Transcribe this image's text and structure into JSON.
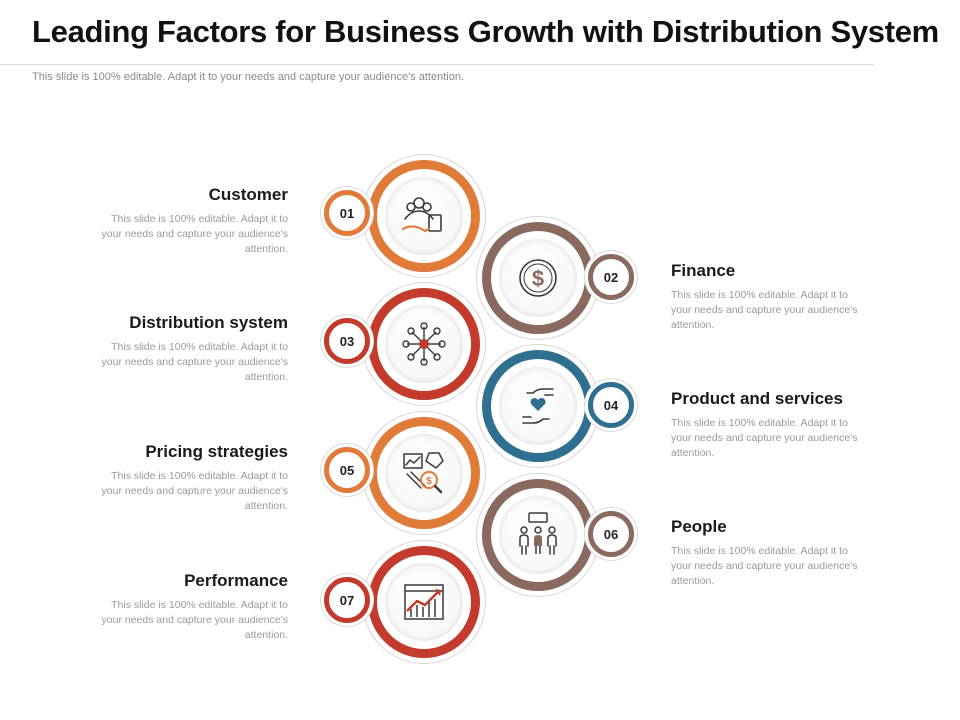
{
  "title": "Leading Factors for Business Growth with Distribution System",
  "subtitle": "This slide is 100% editable. Adapt it to your needs and capture your audience's attention.",
  "colors": {
    "orange": "#e07b39",
    "brown": "#8a6a5f",
    "red": "#c23b2c",
    "teal": "#2f6f8f",
    "dark": "#3a3a3a"
  },
  "items": [
    {
      "num": "01",
      "label": "Customer",
      "desc": "This slide is 100% editable. Adapt it to your needs and capture your audience's attention.",
      "icon": "customer-support-icon",
      "color": "orange"
    },
    {
      "num": "02",
      "label": "Finance",
      "desc": "This slide is 100% editable. Adapt it to your needs and capture your audience's attention.",
      "icon": "dollar-coin-icon",
      "color": "brown"
    },
    {
      "num": "03",
      "label": "Distribution system",
      "desc": "This slide is 100% editable. Adapt it to your needs and capture your audience's attention.",
      "icon": "network-hub-icon",
      "color": "red"
    },
    {
      "num": "04",
      "label": "Product and services",
      "desc": "This slide is 100% editable. Adapt it to your needs and capture your audience's attention.",
      "icon": "hands-heart-icon",
      "color": "teal"
    },
    {
      "num": "05",
      "label": "Pricing strategies",
      "desc": "This slide is 100% editable. Adapt it to your needs and capture your audience's attention.",
      "icon": "pricing-analysis-icon",
      "color": "orange"
    },
    {
      "num": "06",
      "label": "People",
      "desc": "This slide is 100% editable. Adapt it to your needs and capture your audience's attention.",
      "icon": "people-group-icon",
      "color": "brown"
    },
    {
      "num": "07",
      "label": "Performance",
      "desc": "This slide is 100% editable. Adapt it to your needs and capture your audience's attention.",
      "icon": "growth-chart-icon",
      "color": "red"
    }
  ]
}
